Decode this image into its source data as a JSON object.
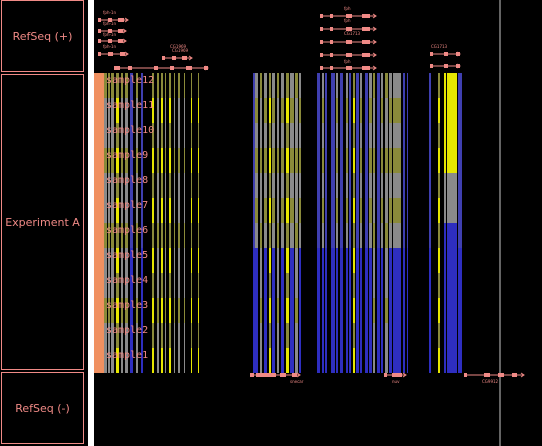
{
  "tracks": {
    "refseq_plus": "RefSeq (+)",
    "experiment": "Experiment A",
    "refseq_minus": "RefSeq (-)"
  },
  "samples": [
    "sample12",
    "sample11",
    "sample10",
    "sample9",
    "sample8",
    "sample7",
    "sample6",
    "sample5",
    "sample4",
    "sample3",
    "sample2",
    "sample1"
  ],
  "genes_plus": [
    "fph-1n",
    "fph-1n",
    "fph-1n",
    "fph-1n",
    "CG1969",
    "CG1969",
    "fph",
    "fph",
    "fph",
    "CG1713",
    "CG1713"
  ],
  "genes_minus": [
    "snecar",
    "nuv",
    "CG9912"
  ],
  "colors": {
    "gene": "#f08a86",
    "blue": "#2e2ec0",
    "yellow": "#e6e600",
    "grey": "#8a8a8a",
    "olive": "#8a8a3a",
    "orange": "#f09060",
    "divider": "#ffffff"
  }
}
